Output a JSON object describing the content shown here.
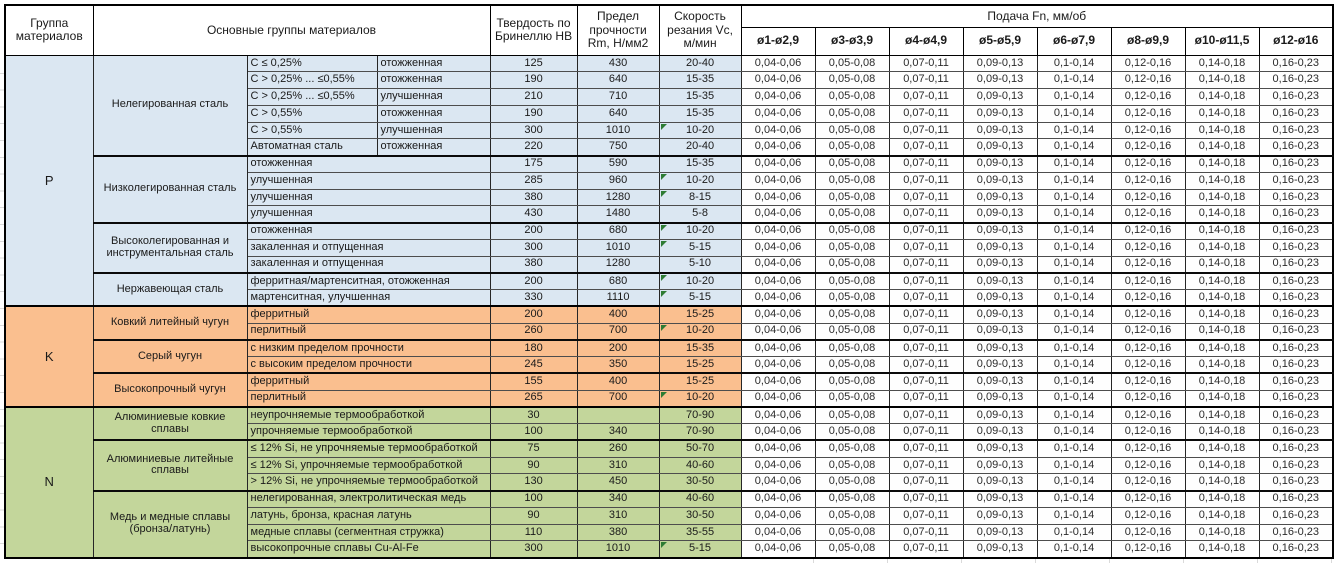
{
  "chart_data": {
    "type": "table",
    "columns": {
      "group": "Группа материалов",
      "main": "Основные группы материалов",
      "hardness": "Твердость по Бринеллю HB",
      "strength": "Предел прочности Rm, Н/мм2",
      "speed": "Скорость резания Vc, м/мин",
      "feed": "Подача Fn, мм/об",
      "feed_diameters": [
        "ø1-ø2,9",
        "ø3-ø3,9",
        "ø4-ø4,9",
        "ø5-ø5,9",
        "ø6-ø7,9",
        "ø8-ø9,9",
        "ø10-ø11,5",
        "ø12-ø16"
      ]
    },
    "feed_values_all_rows": [
      "0,04-0,06",
      "0,05-0,08",
      "0,07-0,11",
      "0,09-0,13",
      "0,1-0,14",
      "0,12-0,16",
      "0,14-0,18",
      "0,16-0,23"
    ],
    "status_colors": {
      "group_P_fill": "#dbe7f2",
      "group_K_fill": "#fabf8f",
      "group_N_fill": "#c3d69b",
      "note_marker_green": "#2e7c34"
    },
    "groups": [
      {
        "code": "P",
        "fill": "#dbe7f2",
        "families": [
          {
            "name": "Нелегированная сталь",
            "rows": [
              {
                "spec": "C ≤ 0,25%",
                "state": "отожженная",
                "hb": "125",
                "rm": "430",
                "vc": "20-40",
                "note_marker": false
              },
              {
                "spec": "C > 0,25% ... ≤0,55%",
                "state": "отожженная",
                "hb": "190",
                "rm": "640",
                "vc": "15-35",
                "note_marker": false
              },
              {
                "spec": "C > 0,25% ... ≤0,55%",
                "state": "улучшенная",
                "hb": "210",
                "rm": "710",
                "vc": "15-35",
                "note_marker": false
              },
              {
                "spec": "C > 0,55%",
                "state": "отожженная",
                "hb": "190",
                "rm": "640",
                "vc": "15-35",
                "note_marker": false
              },
              {
                "spec": "C > 0,55%",
                "state": "улучшенная",
                "hb": "300",
                "rm": "1010",
                "vc": "10-20",
                "note_marker": true
              },
              {
                "spec": "Автоматная сталь",
                "state": "отожженная",
                "hb": "220",
                "rm": "750",
                "vc": "20-40",
                "note_marker": false
              }
            ]
          },
          {
            "name": "Низколегированная сталь",
            "rows": [
              {
                "desc": "отожженная",
                "hb": "175",
                "rm": "590",
                "vc": "15-35",
                "note_marker": false
              },
              {
                "desc": "улучшенная",
                "hb": "285",
                "rm": "960",
                "vc": "10-20",
                "note_marker": true
              },
              {
                "desc": "улучшенная",
                "hb": "380",
                "rm": "1280",
                "vc": "8-15",
                "note_marker": true
              },
              {
                "desc": "улучшенная",
                "hb": "430",
                "rm": "1480",
                "vc": "5-8",
                "note_marker": false
              }
            ]
          },
          {
            "name": "Высоколегированная и инструментальная сталь",
            "rows": [
              {
                "desc": "отожженная",
                "hb": "200",
                "rm": "680",
                "vc": "10-20",
                "note_marker": true
              },
              {
                "desc": "закаленная и отпущенная",
                "hb": "300",
                "rm": "1010",
                "vc": "5-15",
                "note_marker": true
              },
              {
                "desc": "закаленная и отпущенная",
                "hb": "380",
                "rm": "1280",
                "vc": "5-10",
                "note_marker": false
              }
            ]
          },
          {
            "name": "Нержавеющая сталь",
            "rows": [
              {
                "desc": "ферритная/мартенситная, отожженная",
                "hb": "200",
                "rm": "680",
                "vc": "10-20",
                "note_marker": true
              },
              {
                "desc": "мартенситная, улучшенная",
                "hb": "330",
                "rm": "1110",
                "vc": "5-15",
                "note_marker": true
              }
            ]
          }
        ]
      },
      {
        "code": "K",
        "fill": "#fabf8f",
        "families": [
          {
            "name": "Ковкий литейный чугун",
            "rows": [
              {
                "desc": "ферритный",
                "hb": "200",
                "rm": "400",
                "vc": "15-25",
                "note_marker": false
              },
              {
                "desc": "перлитный",
                "hb": "260",
                "rm": "700",
                "vc": "10-20",
                "note_marker": true
              }
            ]
          },
          {
            "name": "Серый чугун",
            "rows": [
              {
                "desc": "с низким пределом прочности",
                "hb": "180",
                "rm": "200",
                "vc": "15-35",
                "note_marker": false
              },
              {
                "desc": "с высоким пределом прочности",
                "hb": "245",
                "rm": "350",
                "vc": "15-25",
                "note_marker": false
              }
            ]
          },
          {
            "name": "Высокопрочный чугун",
            "rows": [
              {
                "desc": "ферритный",
                "hb": "155",
                "rm": "400",
                "vc": "15-25",
                "note_marker": false
              },
              {
                "desc": "перлитный",
                "hb": "265",
                "rm": "700",
                "vc": "10-20",
                "note_marker": true
              }
            ]
          }
        ]
      },
      {
        "code": "N",
        "fill": "#c3d69b",
        "families": [
          {
            "name": "Алюминиевые ковкие сплавы",
            "rows": [
              {
                "desc": "неупрочняемые термообработкой",
                "hb": "30",
                "rm": "",
                "vc": "70-90",
                "note_marker": false
              },
              {
                "desc": "упрочняемые термообработкой",
                "hb": "100",
                "rm": "340",
                "vc": "70-90",
                "note_marker": false
              }
            ]
          },
          {
            "name": "Алюминиевые литейные сплавы",
            "rows": [
              {
                "desc": "≤ 12% Si, не упрочняемые термообработкой",
                "hb": "75",
                "rm": "260",
                "vc": "50-70",
                "note_marker": false
              },
              {
                "desc": "≤ 12% Si, упрочняемые термообработкой",
                "hb": "90",
                "rm": "310",
                "vc": "40-60",
                "note_marker": false
              },
              {
                "desc": "> 12% Si, не упрочняемые термообработкой",
                "hb": "130",
                "rm": "450",
                "vc": "30-50",
                "note_marker": false
              }
            ]
          },
          {
            "name": "Медь и медные сплавы (бронза/латунь)",
            "rows": [
              {
                "desc": "нелегированная, электролитическая медь",
                "hb": "100",
                "rm": "340",
                "vc": "40-60",
                "note_marker": false
              },
              {
                "desc": "латунь, бронза, красная латунь",
                "hb": "90",
                "rm": "310",
                "vc": "30-50",
                "note_marker": false
              },
              {
                "desc": "медные сплавы (сегментная стружка)",
                "hb": "110",
                "rm": "380",
                "vc": "35-55",
                "note_marker": false
              },
              {
                "desc": "высокопрочные сплавы Cu-Al-Fe",
                "hb": "300",
                "rm": "1010",
                "vc": "5-15",
                "note_marker": true
              }
            ]
          }
        ]
      }
    ]
  }
}
